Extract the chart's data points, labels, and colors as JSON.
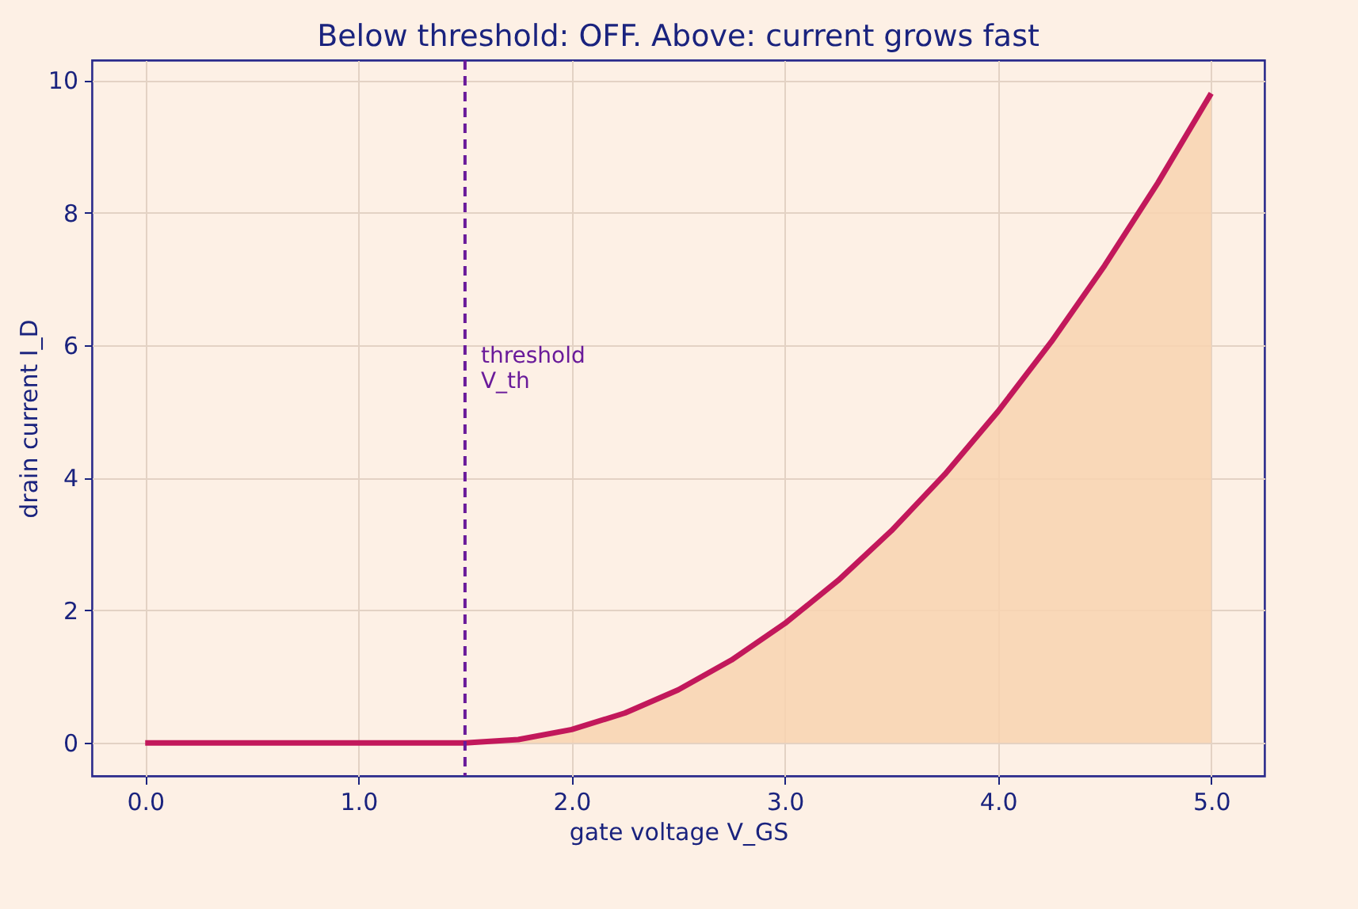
{
  "chart_data": {
    "type": "line",
    "title": "Below threshold: OFF.  Above: current grows fast",
    "xlabel": "gate voltage  V_GS",
    "ylabel": "drain current  I_D",
    "x": [
      0,
      0.5,
      1,
      1.5,
      1.75,
      2,
      2.25,
      2.5,
      2.75,
      3,
      3.25,
      3.5,
      3.75,
      4,
      4.25,
      4.5,
      4.75,
      5
    ],
    "series": [
      {
        "color": "#c2185b",
        "values": [
          0,
          0,
          0,
          0,
          0.05,
          0.2,
          0.45,
          0.8,
          1.25,
          1.8,
          2.45,
          3.2,
          4.05,
          5.0,
          6.05,
          7.2,
          8.45,
          9.8
        ],
        "lower": [
          0,
          0,
          0,
          0,
          0,
          0,
          0,
          0,
          0,
          0,
          0,
          0,
          0,
          0,
          0,
          0,
          0,
          0
        ],
        "upper": [
          0,
          0,
          0,
          0,
          0.05,
          0.2,
          0.45,
          0.8,
          1.25,
          1.8,
          2.45,
          3.2,
          4.05,
          5.0,
          6.05,
          7.2,
          8.45,
          9.8
        ]
      }
    ],
    "xlim": [
      -0.25,
      5.25
    ],
    "ylim": [
      -0.5,
      10.3
    ],
    "xticks": [
      {
        "value": 0,
        "label": "0.0"
      },
      {
        "value": 1,
        "label": "1.0"
      },
      {
        "value": 2,
        "label": "2.0"
      },
      {
        "value": 3,
        "label": "3.0"
      },
      {
        "value": 4,
        "label": "4.0"
      },
      {
        "value": 5,
        "label": "5.0"
      }
    ],
    "yticks": [
      0,
      2,
      4,
      6,
      8,
      10
    ],
    "grid": true,
    "ref_lines": [
      {
        "axis": "x",
        "value": 1.5,
        "label": "threshold\nV_th",
        "color": "#6a1b9a",
        "line_style": "dashed"
      }
    ]
  }
}
